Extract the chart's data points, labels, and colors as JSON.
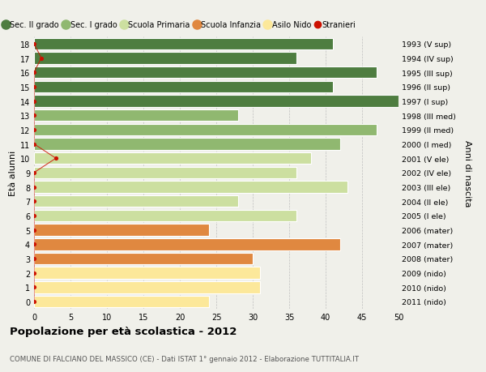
{
  "ages": [
    0,
    1,
    2,
    3,
    4,
    5,
    6,
    7,
    8,
    9,
    10,
    11,
    12,
    13,
    14,
    15,
    16,
    17,
    18
  ],
  "values": [
    24,
    31,
    31,
    30,
    42,
    24,
    36,
    28,
    43,
    36,
    38,
    42,
    47,
    28,
    50,
    41,
    47,
    36,
    41
  ],
  "years": [
    "2011 (nido)",
    "2010 (nido)",
    "2009 (nido)",
    "2008 (mater)",
    "2007 (mater)",
    "2006 (mater)",
    "2005 (I ele)",
    "2004 (II ele)",
    "2003 (III ele)",
    "2002 (IV ele)",
    "2001 (V ele)",
    "2000 (I med)",
    "1999 (II med)",
    "1998 (III med)",
    "1997 (I sup)",
    "1996 (II sup)",
    "1995 (III sup)",
    "1994 (IV sup)",
    "1993 (V sup)"
  ],
  "bar_colors": [
    "#fce89a",
    "#fce89a",
    "#fce89a",
    "#e08840",
    "#e08840",
    "#e08840",
    "#ccdfa0",
    "#ccdfa0",
    "#ccdfa0",
    "#ccdfa0",
    "#ccdfa0",
    "#90b870",
    "#90b870",
    "#90b870",
    "#4e7d40",
    "#4e7d40",
    "#4e7d40",
    "#4e7d40",
    "#4e7d40"
  ],
  "stranieri_values": [
    0,
    0,
    0,
    0,
    0,
    0,
    0,
    0,
    0,
    0,
    3,
    0,
    0,
    0,
    0,
    0,
    0,
    1,
    0
  ],
  "legend_labels": [
    "Sec. II grado",
    "Sec. I grado",
    "Scuola Primaria",
    "Scuola Infanzia",
    "Asilo Nido",
    "Stranieri"
  ],
  "legend_colors": [
    "#4e7d40",
    "#90b870",
    "#ccdfa0",
    "#e08840",
    "#fce89a",
    "#cc1100"
  ],
  "ylabel_left": "Età alunni",
  "ylabel_right": "Anni di nascita",
  "title": "Popolazione per età scolastica - 2012",
  "subtitle": "COMUNE DI FALCIANO DEL MASSICO (CE) - Dati ISTAT 1° gennaio 2012 - Elaborazione TUTTITALIA.IT",
  "xlim": [
    0,
    50
  ],
  "xticks": [
    0,
    5,
    10,
    15,
    20,
    25,
    30,
    35,
    40,
    45,
    50
  ],
  "bg_color": "#f0f0ea",
  "bar_edge_color": "white",
  "grid_color": "#bbbbbb",
  "stranieri_color": "#cc1100"
}
